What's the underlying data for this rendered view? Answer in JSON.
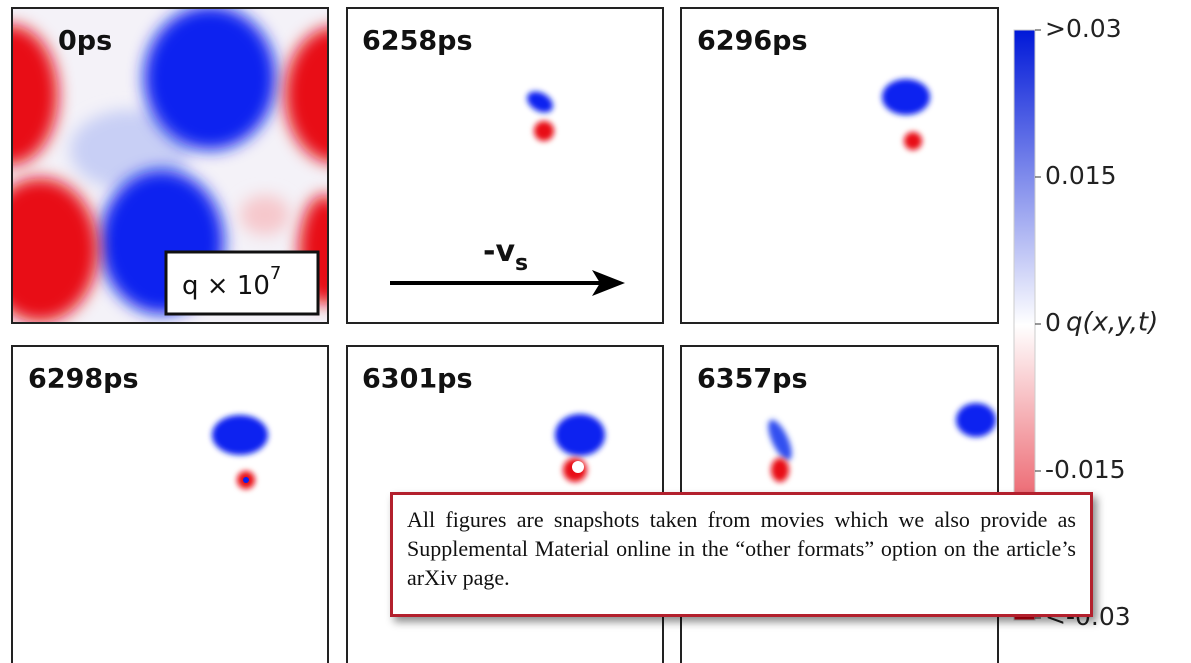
{
  "panels": [
    {
      "label": "0ps"
    },
    {
      "label": "6258ps"
    },
    {
      "label": "6296ps"
    },
    {
      "label": "6298ps"
    },
    {
      "label": "6301ps"
    },
    {
      "label": "6357ps"
    }
  ],
  "inset": {
    "base": "q × 10",
    "exponent": "7"
  },
  "arrow": {
    "label": "-v",
    "subscript": "s"
  },
  "colorbar": {
    "label": "q(x,y,t)",
    "ticks": [
      ">0.03",
      "0.015",
      "0",
      "-0.015",
      "<-0.03"
    ]
  },
  "callout": {
    "text": "All figures are snapshots taken from movies which we also provide as Supplemental Material online in the “other formats” option on the article’s arXiv page."
  }
}
